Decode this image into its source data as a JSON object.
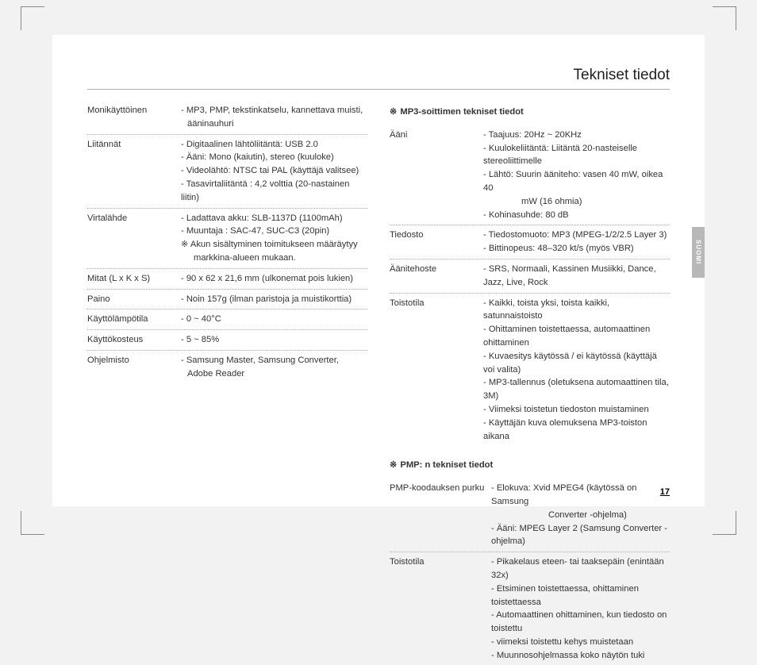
{
  "title": "Tekniset tiedot",
  "side_tab": "SUOMI",
  "page_number": "17",
  "left": [
    {
      "label": "Monikäyttöinen",
      "lines": [
        "- MP3, PMP, tekstinkatselu, kannettava muisti,",
        "  ääninauhuri"
      ]
    },
    {
      "label": "Liitännät",
      "lines": [
        "- Digitaalinen lähtöliitäntä: USB 2.0",
        "- Ääni: Mono (kaiutin), stereo (kuuloke)",
        "- Videolähtö: NTSC tai PAL (käyttäjä valitsee)",
        "- Tasavirtaliitäntä : 4,2 volttia (20-nastainen liitin)"
      ]
    },
    {
      "label": "Virtalähde",
      "lines": [
        "- Ladattava akku: SLB-1137D (1100mAh)",
        "- Muuntaja : SAC-47, SUC-C3 (20pin)",
        "※ Akun sisältyminen toimitukseen määräytyy",
        "    markkina-alueen mukaan."
      ]
    },
    {
      "label": "Mitat (L x K x S)",
      "lines": [
        "- 90 x 62 x 21,6 mm (ulkonemat pois lukien)"
      ]
    },
    {
      "label": "Paino",
      "lines": [
        "- Noin 157g (ilman paristoja ja muistikorttia)"
      ]
    },
    {
      "label": "Käyttölämpötila",
      "lines": [
        "- 0 ~ 40°C"
      ]
    },
    {
      "label": "Käyttökosteus",
      "lines": [
        "- 5 ~ 85%"
      ]
    },
    {
      "label": "Ohjelmisto",
      "lines": [
        "- Samsung Master, Samsung Converter,",
        "  Adobe Reader"
      ],
      "noborder": true
    }
  ],
  "section_mp3": "MP3-soittimen tekniset tiedot",
  "mp3": [
    {
      "label": "Ääni",
      "lines": [
        "- Taajuus: 20Hz ~ 20KHz",
        "- Kuulokeliitäntä: Liitäntä 20-nasteiselle stereoliittimelle",
        "- Lähtö: Suurin ääniteho: vasen 40 mW, oikea 40",
        "            mW (16 ohmia)",
        "- Kohinasuhde: 80 dB"
      ]
    },
    {
      "label": "Tiedosto",
      "lines": [
        "- Tiedostomuoto: MP3 (MPEG-1/2/2.5 Layer 3)",
        "- Bittinopeus: 48–320 kt/s (myös VBR)"
      ]
    },
    {
      "label": "Äänitehoste",
      "lines": [
        "- SRS, Normaali, Kassinen Musiikki, Dance, Jazz, Live, Rock"
      ]
    },
    {
      "label": "Toistotila",
      "lines": [
        "- Kaikki, toista yksi, toista kaikki, satunnaistoisto",
        "- Ohittaminen toistettaessa, automaattinen ohittaminen",
        "- Kuvaesitys käytössä / ei käytössä (käyttäjä voi valita)",
        "- MP3-tallennus (oletuksena automaattinen tila, 3M)",
        "- Viimeksi toistetun tiedoston muistaminen",
        "- Käyttäjän kuva olemuksena MP3-toiston aikana"
      ],
      "noborder": true
    }
  ],
  "section_pmp": "PMP: n tekniset tiedot",
  "pmp": [
    {
      "label": "PMP-koodauksen purku",
      "lines": [
        "- Elokuva: Xvid MPEG4 (käytössä on Samsung",
        "                  Converter -ohjelma)",
        "- Ääni: MPEG Layer 2 (Samsung Converter -ohjelma)"
      ]
    },
    {
      "label": "Toistotila",
      "lines": [
        "- Pikakelaus eteen- tai taaksepäin (enintään 32x)",
        "- Etsiminen toistettaessa, ohittaminen toistettaessa",
        "- Automaattinen ohittaminen, kun tiedosto on toistettu",
        "- viimeksi toistettu kehys muistetaan",
        "- Muunnosohjelmassa koko näytön tuki"
      ],
      "noborder": true
    }
  ],
  "symbol": "※"
}
